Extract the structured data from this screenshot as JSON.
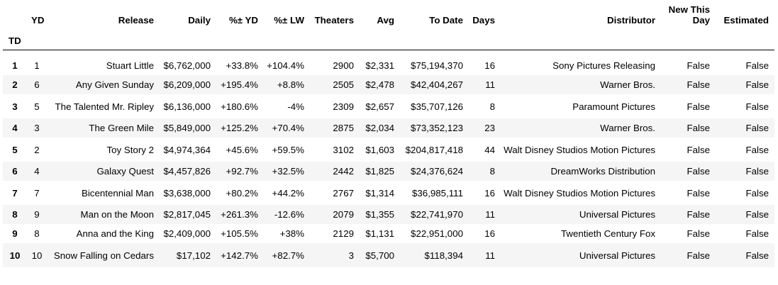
{
  "table": {
    "index_name": "TD",
    "columns": [
      "YD",
      "Release",
      "Daily",
      "%± YD",
      "%± LW",
      "Theaters",
      "Avg",
      "To Date",
      "Days",
      "Distributor",
      "New This Day",
      "Estimated"
    ],
    "rows": [
      {
        "td": "1",
        "cells": [
          "1",
          "Stuart Little",
          "$6,762,000",
          "+33.8%",
          "+104.4%",
          "2900",
          "$2,331",
          "$75,194,370",
          "16",
          "Sony Pictures Releasing",
          "False",
          "False"
        ]
      },
      {
        "td": "2",
        "cells": [
          "6",
          "Any Given Sunday",
          "$6,209,000",
          "+195.4%",
          "+8.8%",
          "2505",
          "$2,478",
          "$42,404,267",
          "11",
          "Warner Bros.",
          "False",
          "False"
        ]
      },
      {
        "td": "3",
        "cells": [
          "5",
          "The Talented Mr. Ripley",
          "$6,136,000",
          "+180.6%",
          "-4%",
          "2309",
          "$2,657",
          "$35,707,126",
          "8",
          "Paramount Pictures",
          "False",
          "False"
        ]
      },
      {
        "td": "4",
        "cells": [
          "3",
          "The Green Mile",
          "$5,849,000",
          "+125.2%",
          "+70.4%",
          "2875",
          "$2,034",
          "$73,352,123",
          "23",
          "Warner Bros.",
          "False",
          "False"
        ]
      },
      {
        "td": "5",
        "cells": [
          "2",
          "Toy Story 2",
          "$4,974,364",
          "+45.6%",
          "+59.5%",
          "3102",
          "$1,603",
          "$204,817,418",
          "44",
          "Walt Disney Studios Motion Pictures",
          "False",
          "False"
        ]
      },
      {
        "td": "6",
        "cells": [
          "4",
          "Galaxy Quest",
          "$4,457,826",
          "+92.7%",
          "+32.5%",
          "2442",
          "$1,825",
          "$24,376,624",
          "8",
          "DreamWorks Distribution",
          "False",
          "False"
        ]
      },
      {
        "td": "7",
        "cells": [
          "7",
          "Bicentennial Man",
          "$3,638,000",
          "+80.2%",
          "+44.2%",
          "2767",
          "$1,314",
          "$36,985,111",
          "16",
          "Walt Disney Studios Motion Pictures",
          "False",
          "False"
        ]
      },
      {
        "td": "8",
        "cells": [
          "9",
          "Man on the Moon",
          "$2,817,045",
          "+261.3%",
          "-12.6%",
          "2079",
          "$1,355",
          "$22,741,970",
          "11",
          "Universal Pictures",
          "False",
          "False"
        ]
      },
      {
        "td": "9",
        "cells": [
          "8",
          "Anna and the King",
          "$2,409,000",
          "+105.5%",
          "+38%",
          "2129",
          "$1,131",
          "$22,951,000",
          "16",
          "Twentieth Century Fox",
          "False",
          "False"
        ]
      },
      {
        "td": "10",
        "cells": [
          "10",
          "Snow Falling on Cedars",
          "$17,102",
          "+142.7%",
          "+82.7%",
          "3",
          "$5,700",
          "$118,394",
          "11",
          "Universal Pictures",
          "False",
          "False"
        ]
      }
    ]
  }
}
